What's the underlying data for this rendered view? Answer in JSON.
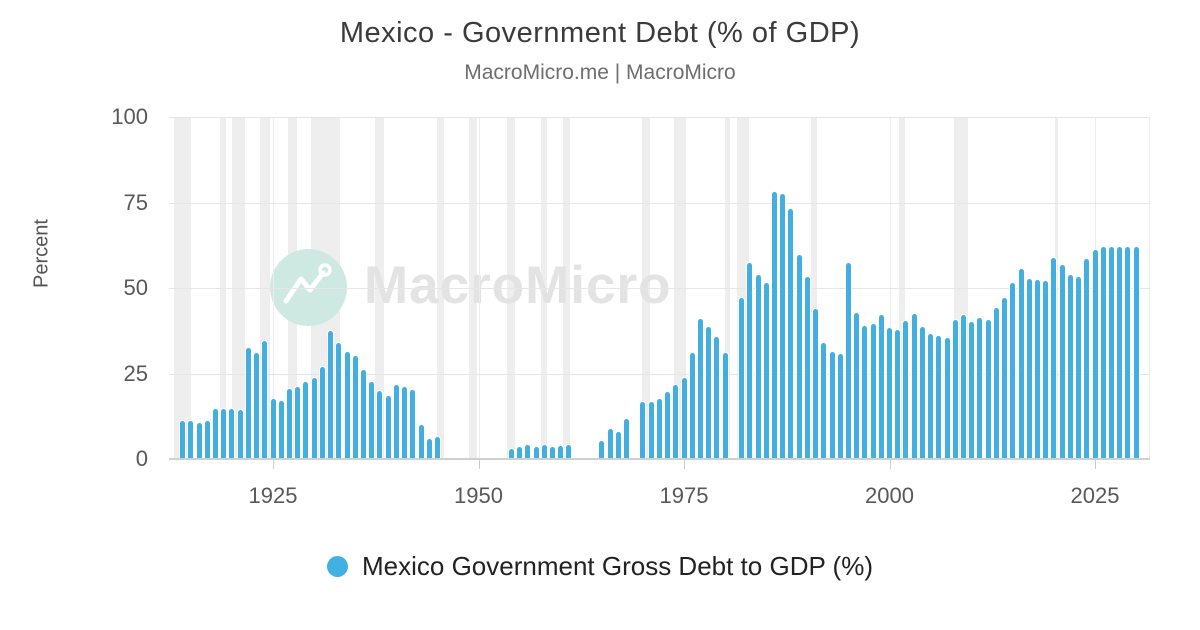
{
  "header": {
    "title": "Mexico - Government Debt (% of GDP)",
    "subtitle": "MacroMicro.me | MacroMicro"
  },
  "watermark": {
    "text": "MacroMicro"
  },
  "legend": {
    "label": "Mexico Government Gross Debt to GDP (%)"
  },
  "colors": {
    "bar": "#42afe0",
    "legend_dot": "#40b1e2",
    "grid": "#e6e6e6",
    "axis_line": "#cfcfcf",
    "recession_band": "#eeeeee",
    "watermark_circle": "#cde9e1",
    "watermark_text": "#e3e3e3"
  },
  "y_axis": {
    "title": "Percent",
    "ticks": [
      0,
      25,
      50,
      75,
      100
    ]
  },
  "x_axis": {
    "ticks": [
      1925,
      1950,
      1975,
      2000,
      2025
    ]
  },
  "chart_data": {
    "type": "bar",
    "title": "Mexico - Government Debt (% of GDP)",
    "xlabel": "",
    "ylabel": "Percent",
    "ylim": [
      0,
      100
    ],
    "xlim": [
      1912.3,
      2031.7
    ],
    "grid": true,
    "legend_position": "bottom",
    "series_name": "Mexico Government Gross Debt to GDP (%)",
    "points": [
      {
        "year": 1914,
        "value": 11.2
      },
      {
        "year": 1915,
        "value": 11.2
      },
      {
        "year": 1916,
        "value": 10.5
      },
      {
        "year": 1917,
        "value": 11.1
      },
      {
        "year": 1918,
        "value": 14.5
      },
      {
        "year": 1919,
        "value": 14.7
      },
      {
        "year": 1920,
        "value": 14.7
      },
      {
        "year": 1921,
        "value": 14.2
      },
      {
        "year": 1922,
        "value": 32.5
      },
      {
        "year": 1923,
        "value": 31.0
      },
      {
        "year": 1924,
        "value": 34.5
      },
      {
        "year": 1925,
        "value": 17.5
      },
      {
        "year": 1926,
        "value": 17.0
      },
      {
        "year": 1927,
        "value": 20.5
      },
      {
        "year": 1928,
        "value": 21.0
      },
      {
        "year": 1929,
        "value": 22.6
      },
      {
        "year": 1930,
        "value": 23.8
      },
      {
        "year": 1931,
        "value": 27.0
      },
      {
        "year": 1932,
        "value": 37.3
      },
      {
        "year": 1933,
        "value": 33.8
      },
      {
        "year": 1934,
        "value": 31.3
      },
      {
        "year": 1935,
        "value": 30.0
      },
      {
        "year": 1936,
        "value": 26.0
      },
      {
        "year": 1937,
        "value": 22.5
      },
      {
        "year": 1938,
        "value": 19.9
      },
      {
        "year": 1939,
        "value": 18.5
      },
      {
        "year": 1940,
        "value": 21.6
      },
      {
        "year": 1941,
        "value": 21.0
      },
      {
        "year": 1942,
        "value": 20.3
      },
      {
        "year": 1943,
        "value": 9.9
      },
      {
        "year": 1944,
        "value": 5.8
      },
      {
        "year": 1945,
        "value": 6.5
      },
      {
        "year": 1954,
        "value": 2.9
      },
      {
        "year": 1955,
        "value": 3.6
      },
      {
        "year": 1956,
        "value": 4.1
      },
      {
        "year": 1957,
        "value": 3.4
      },
      {
        "year": 1958,
        "value": 4.0
      },
      {
        "year": 1959,
        "value": 3.5
      },
      {
        "year": 1960,
        "value": 3.8
      },
      {
        "year": 1961,
        "value": 4.1
      },
      {
        "year": 1965,
        "value": 5.2
      },
      {
        "year": 1966,
        "value": 8.7
      },
      {
        "year": 1967,
        "value": 8.0
      },
      {
        "year": 1968,
        "value": 11.7
      },
      {
        "year": 1970,
        "value": 16.7
      },
      {
        "year": 1971,
        "value": 16.8
      },
      {
        "year": 1972,
        "value": 17.5
      },
      {
        "year": 1973,
        "value": 19.6
      },
      {
        "year": 1974,
        "value": 21.6
      },
      {
        "year": 1975,
        "value": 23.8
      },
      {
        "year": 1976,
        "value": 31.0
      },
      {
        "year": 1977,
        "value": 41.0
      },
      {
        "year": 1978,
        "value": 38.7
      },
      {
        "year": 1979,
        "value": 35.7
      },
      {
        "year": 1980,
        "value": 31.1
      },
      {
        "year": 1982,
        "value": 47.2
      },
      {
        "year": 1983,
        "value": 57.4
      },
      {
        "year": 1984,
        "value": 53.8
      },
      {
        "year": 1985,
        "value": 51.5
      },
      {
        "year": 1986,
        "value": 78.0
      },
      {
        "year": 1987,
        "value": 77.4
      },
      {
        "year": 1988,
        "value": 73.1
      },
      {
        "year": 1989,
        "value": 59.6
      },
      {
        "year": 1990,
        "value": 53.3
      },
      {
        "year": 1991,
        "value": 44.0
      },
      {
        "year": 1992,
        "value": 33.9
      },
      {
        "year": 1993,
        "value": 31.4
      },
      {
        "year": 1994,
        "value": 30.7
      },
      {
        "year": 1995,
        "value": 57.2
      },
      {
        "year": 1996,
        "value": 42.6
      },
      {
        "year": 1997,
        "value": 39.0
      },
      {
        "year": 1998,
        "value": 39.6
      },
      {
        "year": 1999,
        "value": 42.2
      },
      {
        "year": 2000,
        "value": 38.4
      },
      {
        "year": 2001,
        "value": 37.6
      },
      {
        "year": 2002,
        "value": 40.4
      },
      {
        "year": 2003,
        "value": 42.3
      },
      {
        "year": 2004,
        "value": 38.7
      },
      {
        "year": 2005,
        "value": 36.7
      },
      {
        "year": 2006,
        "value": 35.9
      },
      {
        "year": 2007,
        "value": 35.5
      },
      {
        "year": 2008,
        "value": 40.8
      },
      {
        "year": 2009,
        "value": 42.0
      },
      {
        "year": 2010,
        "value": 40.2
      },
      {
        "year": 2011,
        "value": 41.3
      },
      {
        "year": 2012,
        "value": 40.7
      },
      {
        "year": 2013,
        "value": 44.2
      },
      {
        "year": 2014,
        "value": 47.2
      },
      {
        "year": 2015,
        "value": 51.5
      },
      {
        "year": 2016,
        "value": 55.5
      },
      {
        "year": 2017,
        "value": 52.6
      },
      {
        "year": 2018,
        "value": 52.5
      },
      {
        "year": 2019,
        "value": 52.0
      },
      {
        "year": 2020,
        "value": 58.9
      },
      {
        "year": 2021,
        "value": 56.7
      },
      {
        "year": 2022,
        "value": 53.8
      },
      {
        "year": 2023,
        "value": 53.2
      },
      {
        "year": 2024,
        "value": 58.4
      },
      {
        "year": 2025,
        "value": 61.2
      },
      {
        "year": 2026,
        "value": 61.9
      },
      {
        "year": 2027,
        "value": 61.9
      },
      {
        "year": 2028,
        "value": 61.9
      },
      {
        "year": 2029,
        "value": 61.9
      },
      {
        "year": 2030,
        "value": 61.9
      }
    ],
    "background_bands": [
      [
        1913.0,
        1915.0
      ],
      [
        1918.6,
        1919.3
      ],
      [
        1920.0,
        1921.6
      ],
      [
        1923.4,
        1924.6
      ],
      [
        1926.8,
        1927.9
      ],
      [
        1929.6,
        1933.2
      ],
      [
        1937.4,
        1938.5
      ],
      [
        1945.0,
        1945.8
      ],
      [
        1948.8,
        1949.8
      ],
      [
        1953.5,
        1954.4
      ],
      [
        1957.6,
        1958.3
      ],
      [
        1960.3,
        1961.1
      ],
      [
        1969.9,
        1970.9
      ],
      [
        1973.8,
        1975.2
      ],
      [
        1980.0,
        1980.6
      ],
      [
        1981.5,
        1982.9
      ],
      [
        1990.5,
        1991.2
      ],
      [
        2001.2,
        2001.9
      ],
      [
        2007.9,
        2009.5
      ],
      [
        2020.1,
        2020.5
      ]
    ]
  }
}
